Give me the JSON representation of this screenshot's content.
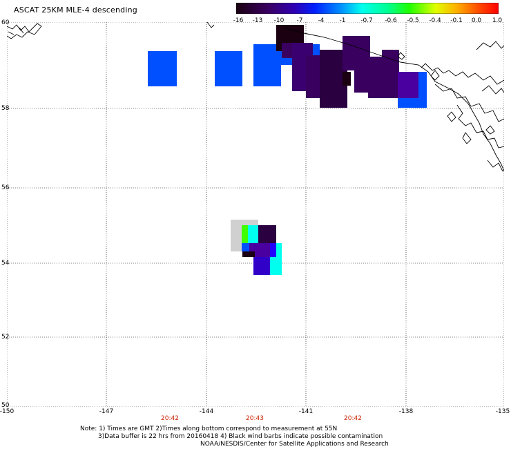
{
  "title": "ASCAT 25KM MLE-4 descending",
  "colorbar": {
    "labels": [
      "-16",
      "-13",
      "-10",
      "-7",
      "-4",
      "-1",
      "-0.7",
      "-0.6",
      "-0.5",
      "-0.4",
      "-0.1",
      "0.0",
      "1.0"
    ],
    "colors": [
      "#1a0010",
      "#2a0040",
      "#4a0090",
      "#2000c8",
      "#0050ff",
      "#00aaff",
      "#00ffee",
      "#00ff80",
      "#40ff00",
      "#d0ff00",
      "#ffc000",
      "#ff6000",
      "#ff0000"
    ]
  },
  "map": {
    "lat_labels": [
      "60",
      "58",
      "56",
      "54",
      "52",
      "50"
    ],
    "lon_labels": [
      "-150",
      "-147",
      "-144",
      "-141",
      "-138",
      "-135"
    ],
    "time_labels": [
      "20:42",
      "20:43",
      "20:42"
    ]
  },
  "note": {
    "line1": "Note: 1) Times are GMT 2)Times along bottom correspond to measurement at 55N",
    "line2": "3)Data buffer is 22 hrs from 20160418 4) Black wind barbs indicate possible contamination",
    "line3": "NOAA/NESDIS/Center for Satellite Applications and Research"
  }
}
